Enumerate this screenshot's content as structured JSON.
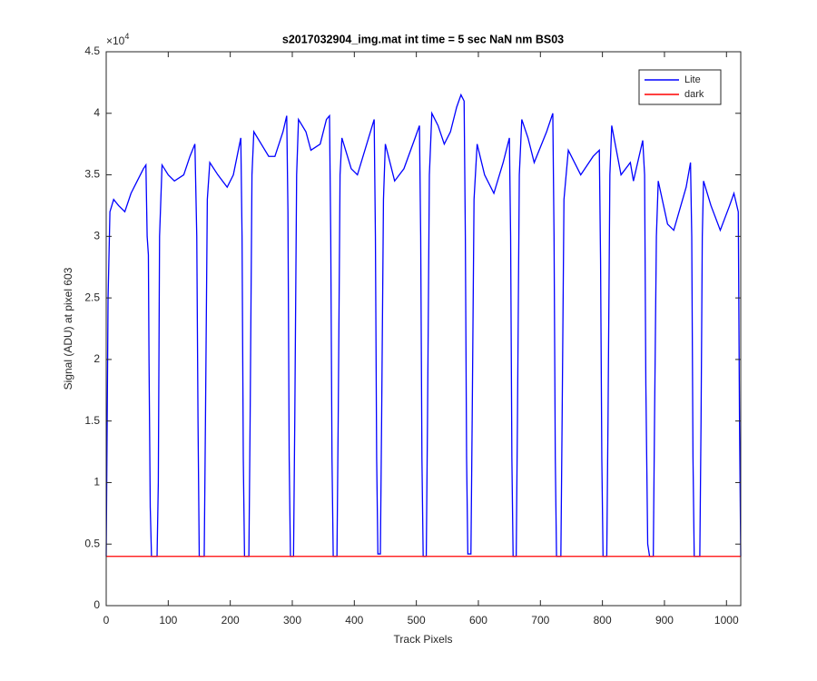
{
  "chart_data": {
    "type": "line",
    "title": "s2017032904_img.mat int time = 5 sec  NaN nm BS03",
    "x_label": "Track Pixels",
    "y_label": "Signal (ADU) at pixel 603",
    "y_multiplier": {
      "base": "×10",
      "exponent": "4"
    },
    "xlim": [
      0,
      1023
    ],
    "ylim": [
      0,
      45000
    ],
    "xticks": [
      0,
      100,
      200,
      300,
      400,
      500,
      600,
      700,
      800,
      900,
      1000
    ],
    "yticks": [
      {
        "value": 0,
        "label": "0"
      },
      {
        "value": 5000,
        "label": "0.5"
      },
      {
        "value": 10000,
        "label": "1"
      },
      {
        "value": 15000,
        "label": "1.5"
      },
      {
        "value": 20000,
        "label": "2"
      },
      {
        "value": 25000,
        "label": "2.5"
      },
      {
        "value": 30000,
        "label": "3"
      },
      {
        "value": 35000,
        "label": "3.5"
      },
      {
        "value": 40000,
        "label": "4"
      },
      {
        "value": 45000,
        "label": "4.5"
      }
    ],
    "grid": false,
    "legend": "northeast",
    "series": [
      {
        "name": "Lite",
        "color": "#0000ff",
        "x": [
          0,
          3,
          6,
          12,
          20,
          30,
          40,
          50,
          60,
          64,
          66,
          68,
          69,
          71,
          73,
          82,
          84,
          86,
          90,
          100,
          110,
          125,
          135,
          143,
          146,
          148,
          150,
          158,
          160,
          163,
          167,
          180,
          195,
          205,
          213,
          217,
          219,
          221,
          223,
          230,
          232,
          235,
          238,
          250,
          262,
          272,
          285,
          291,
          293,
          295,
          297,
          302,
          304,
          307,
          310,
          322,
          330,
          345,
          355,
          360,
          362,
          364,
          366,
          372,
          374,
          377,
          380,
          395,
          405,
          420,
          432,
          434,
          436,
          438,
          442,
          444,
          447,
          450,
          465,
          480,
          498,
          505,
          507,
          509,
          511,
          516,
          518,
          521,
          525,
          535,
          545,
          555,
          565,
          572,
          577,
          579,
          581,
          583,
          588,
          590,
          593,
          598,
          610,
          625,
          640,
          650,
          652,
          654,
          656,
          661,
          663,
          666,
          670,
          680,
          690,
          710,
          720,
          722,
          724,
          726,
          733,
          735,
          738,
          745,
          765,
          785,
          795,
          797,
          799,
          801,
          807,
          809,
          812,
          815,
          830,
          845,
          850,
          865,
          868,
          870,
          873,
          876,
          882,
          884,
          887,
          890,
          905,
          915,
          935,
          942,
          944,
          946,
          948,
          957,
          959,
          961,
          963,
          975,
          990,
          1005,
          1012,
          1019,
          1021,
          1023
        ],
        "values": [
          4000,
          25000,
          32000,
          33000,
          32500,
          32000,
          33500,
          34500,
          35500,
          35800,
          30000,
          28500,
          20000,
          8000,
          4000,
          4000,
          10000,
          30000,
          35800,
          35000,
          34500,
          35000,
          36500,
          37500,
          30000,
          15000,
          4000,
          4000,
          15000,
          33000,
          36000,
          35000,
          34000,
          35000,
          37000,
          38000,
          30000,
          12000,
          4000,
          4000,
          15000,
          35000,
          38500,
          37500,
          36500,
          36500,
          38500,
          39800,
          32000,
          12000,
          4000,
          4000,
          15000,
          35000,
          39500,
          38500,
          37000,
          37500,
          39500,
          39800,
          30000,
          12000,
          4000,
          4000,
          15000,
          35000,
          38000,
          35500,
          35000,
          37500,
          39500,
          30000,
          12000,
          4200,
          4200,
          15000,
          33000,
          37500,
          34500,
          35500,
          38000,
          39000,
          30000,
          12000,
          4000,
          4000,
          15000,
          35000,
          40000,
          39000,
          37500,
          38500,
          40500,
          41500,
          41000,
          30000,
          12000,
          4200,
          4200,
          15000,
          33000,
          37500,
          35000,
          33500,
          36000,
          38000,
          30000,
          12000,
          4000,
          4000,
          15000,
          35000,
          39500,
          38000,
          36000,
          38500,
          40000,
          30000,
          12000,
          4000,
          4000,
          15000,
          33000,
          37000,
          35000,
          36500,
          37000,
          28000,
          12000,
          4000,
          4000,
          15000,
          35000,
          39000,
          35000,
          36000,
          34500,
          37800,
          35000,
          18000,
          5000,
          4000,
          4000,
          15000,
          30000,
          34500,
          31000,
          30500,
          34000,
          36000,
          30000,
          12000,
          4000,
          4000,
          15000,
          30000,
          34500,
          32500,
          30500,
          32500,
          33500,
          32000,
          15000,
          4000
        ]
      },
      {
        "name": "dark",
        "color": "#ff0000",
        "x": [
          0,
          1023
        ],
        "values": [
          4000,
          4000
        ]
      }
    ]
  }
}
